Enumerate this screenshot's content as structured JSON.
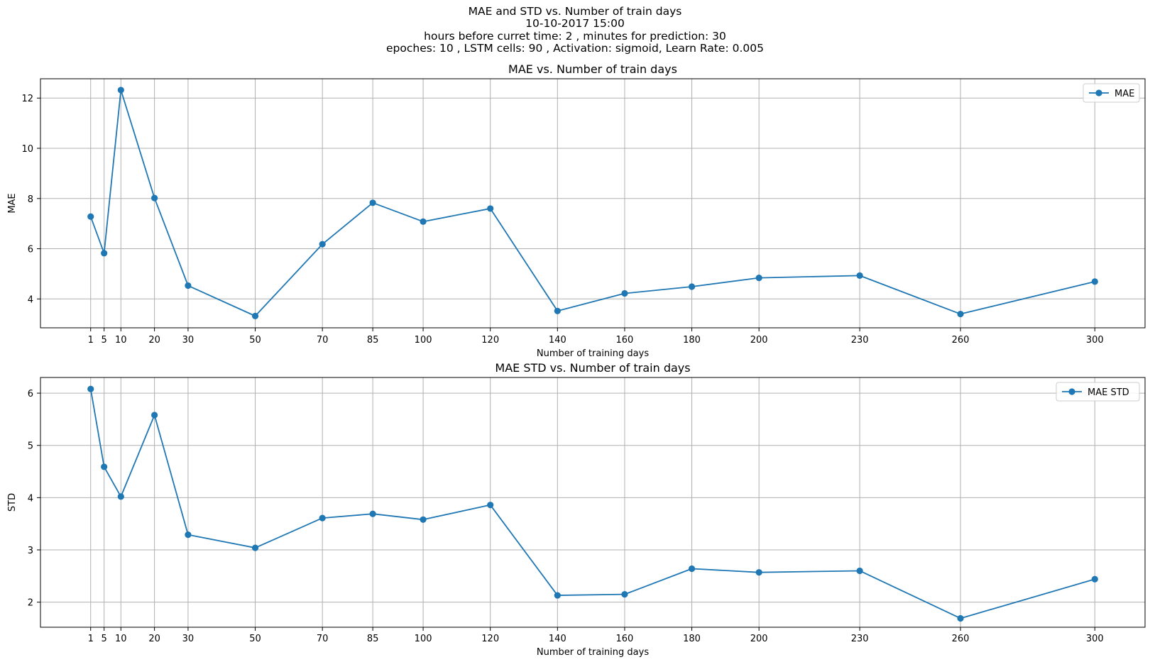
{
  "figure": {
    "suptitle_lines": [
      "MAE and STD vs. Number of train days",
      "10-10-2017 15:00",
      "hours before curret time: 2 , minutes for prediction: 30",
      "epoches: 10 , LSTM cells: 90 , Activation: sigmoid, Learn Rate: 0.005"
    ]
  },
  "colors": {
    "series": "#1f77b4",
    "grid": "#b0b0b0",
    "axis": "#000000"
  },
  "chart_data": [
    {
      "type": "line",
      "title": "MAE vs. Number of train days",
      "xlabel": "Number of training days",
      "ylabel": "MAE",
      "xlim": [
        -13.95,
        314.95
      ],
      "ylim": [
        2.85,
        12.77
      ],
      "xticks": [
        1,
        5,
        10,
        20,
        30,
        50,
        70,
        85,
        100,
        120,
        140,
        160,
        180,
        200,
        230,
        260,
        300
      ],
      "yticks": [
        4,
        6,
        8,
        10,
        12
      ],
      "grid": true,
      "legend_position": "top-right",
      "marker": "circle",
      "series": [
        {
          "name": "MAE",
          "x": [
            1,
            5,
            10,
            20,
            30,
            50,
            70,
            85,
            100,
            120,
            140,
            160,
            180,
            200,
            230,
            260,
            300
          ],
          "values": [
            7.28,
            5.82,
            12.32,
            8.02,
            4.53,
            3.32,
            6.18,
            7.83,
            7.08,
            7.6,
            3.52,
            4.22,
            4.49,
            4.84,
            4.93,
            3.4,
            4.69
          ]
        }
      ]
    },
    {
      "type": "line",
      "title": "MAE STD vs. Number of train days",
      "xlabel": "Number of training days",
      "ylabel": "STD",
      "xlim": [
        -13.95,
        314.95
      ],
      "ylim": [
        1.52,
        6.3
      ],
      "xticks": [
        1,
        5,
        10,
        20,
        30,
        50,
        70,
        85,
        100,
        120,
        140,
        160,
        180,
        200,
        230,
        260,
        300
      ],
      "yticks": [
        2,
        3,
        4,
        5,
        6
      ],
      "grid": true,
      "legend_position": "top-right",
      "marker": "circle",
      "series": [
        {
          "name": "MAE STD",
          "x": [
            1,
            5,
            10,
            20,
            30,
            50,
            70,
            85,
            100,
            120,
            140,
            160,
            180,
            200,
            230,
            260,
            300
          ],
          "values": [
            6.08,
            4.59,
            4.02,
            5.58,
            3.29,
            3.04,
            3.61,
            3.69,
            3.58,
            3.86,
            2.13,
            2.15,
            2.64,
            2.57,
            2.6,
            1.69,
            2.44
          ]
        }
      ]
    }
  ]
}
